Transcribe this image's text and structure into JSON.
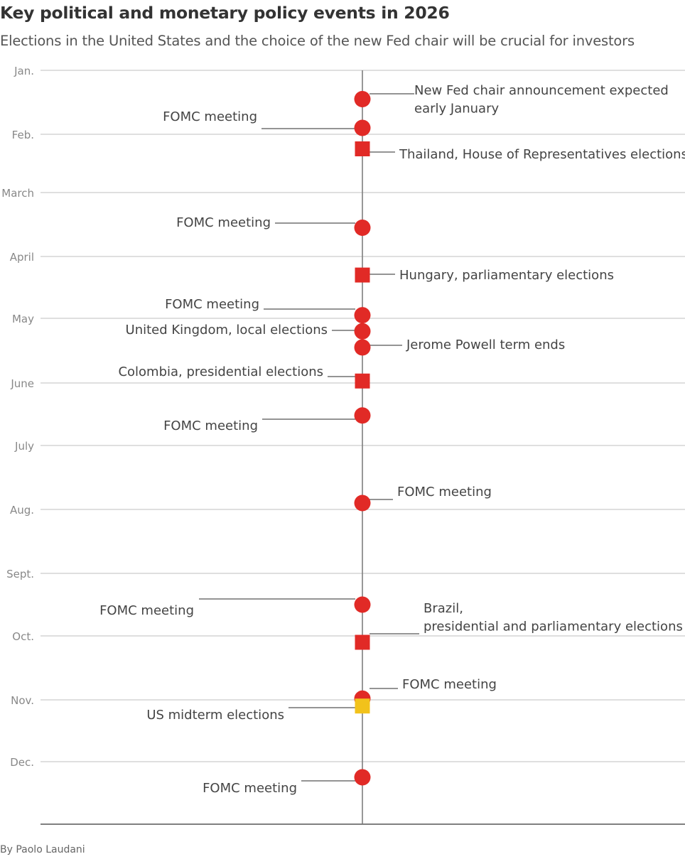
{
  "title": "Key political and monetary policy events in 2026",
  "subtitle": "Elections in the United States and the choice of the new Fed chair will be crucial for investors",
  "byline": "By Paolo Laudani",
  "colors": {
    "accent": "#e12a26",
    "highlight": "#f2c21b",
    "grid": "#cccccc",
    "axis": "#777777"
  },
  "chart_data": {
    "type": "timeline",
    "year": 2026,
    "axis_months": [
      "Jan.",
      "Feb.",
      "March",
      "April",
      "May",
      "June",
      "July",
      "Aug.",
      "Sept.",
      "Oct.",
      "Nov.",
      "Dec."
    ],
    "events": [
      {
        "label": [
          "New Fed chair announcement expected",
          "early January"
        ],
        "month_pos": 0.45,
        "marker": "circle",
        "color": "#e12a26",
        "side": "right"
      },
      {
        "label": [
          "FOMC meeting"
        ],
        "month_pos": 0.9,
        "marker": "circle",
        "color": "#e12a26",
        "side": "left"
      },
      {
        "label": [
          "Thailand, House of Representatives elections"
        ],
        "month_pos": 1.25,
        "marker": "square",
        "color": "#e12a26",
        "side": "right"
      },
      {
        "label": [
          "FOMC meeting"
        ],
        "month_pos": 2.55,
        "marker": "circle",
        "color": "#e12a26",
        "side": "left"
      },
      {
        "label": [
          "Hungary, parliamentary elections"
        ],
        "month_pos": 3.3,
        "marker": "square",
        "color": "#e12a26",
        "side": "right"
      },
      {
        "label": [
          "FOMC meeting"
        ],
        "month_pos": 3.95,
        "marker": "circle",
        "color": "#e12a26",
        "side": "left"
      },
      {
        "label": [
          "United Kingdom, local elections"
        ],
        "month_pos": 4.2,
        "marker": "circle",
        "color": "#e12a26",
        "side": "left"
      },
      {
        "label": [
          "Jerome Powell term ends"
        ],
        "month_pos": 4.45,
        "marker": "circle",
        "color": "#e12a26",
        "side": "right"
      },
      {
        "label": [
          "Colombia, presidential elections"
        ],
        "month_pos": 4.97,
        "marker": "square",
        "color": "#e12a26",
        "side": "left"
      },
      {
        "label": [
          "FOMC meeting"
        ],
        "month_pos": 5.52,
        "marker": "circle",
        "color": "#e12a26",
        "side": "left"
      },
      {
        "label": [
          "FOMC meeting"
        ],
        "month_pos": 6.9,
        "marker": "circle",
        "color": "#e12a26",
        "side": "right"
      },
      {
        "label": [
          "FOMC meeting"
        ],
        "month_pos": 8.5,
        "marker": "circle",
        "color": "#e12a26",
        "side": "left"
      },
      {
        "label": [
          "Brazil,",
          "presidential and parliamentary elections"
        ],
        "month_pos": 9.1,
        "marker": "square",
        "color": "#e12a26",
        "side": "right"
      },
      {
        "label": [
          "FOMC meeting"
        ],
        "month_pos": 9.98,
        "marker": "circle",
        "color": "#e12a26",
        "side": "right"
      },
      {
        "label": [
          "US midterm elections"
        ],
        "month_pos": 10.1,
        "marker": "square",
        "color": "#f2c21b",
        "side": "left"
      },
      {
        "label": [
          "FOMC meeting"
        ],
        "month_pos": 11.25,
        "marker": "circle",
        "color": "#e12a26",
        "side": "left"
      }
    ]
  }
}
